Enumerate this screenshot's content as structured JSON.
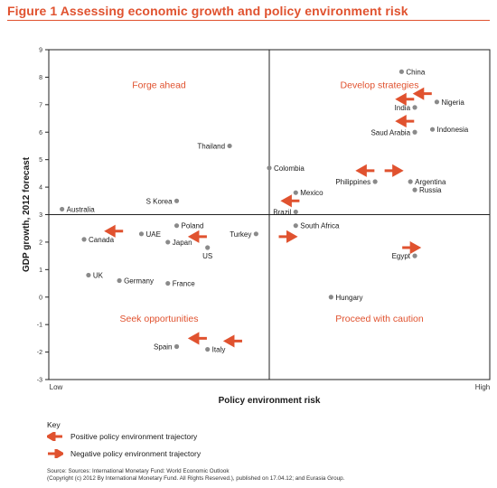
{
  "figure_title": "Figure 1  Assessing economic growth and policy environment risk",
  "colors": {
    "accent": "#e0522f",
    "point": "#8a8a8a",
    "frame": "#222222"
  },
  "chart_data": {
    "type": "scatter",
    "xlabel": "Policy environment risk",
    "ylabel": "GDP growth, 2012 forecast",
    "x_tick_labels": [
      "Low",
      "High"
    ],
    "x_scale": "qualitative index 0–100",
    "xlim": [
      0,
      100
    ],
    "ylim": [
      -3,
      9
    ],
    "yticks": [
      -3,
      -2,
      -1,
      0,
      1,
      2,
      3,
      4,
      5,
      6,
      7,
      8,
      9
    ],
    "grid": false,
    "quadrant_dividers": {
      "x": 50,
      "y": 3
    },
    "quadrant_labels": [
      "Forge ahead",
      "Develop strategies",
      "Seek opportunities",
      "Proceed with caution"
    ],
    "points": [
      {
        "label": "China",
        "x": 80,
        "y": 8.2
      },
      {
        "label": "Nigeria",
        "x": 88,
        "y": 7.1
      },
      {
        "label": "India",
        "x": 83,
        "y": 6.9
      },
      {
        "label": "Saud Arabia",
        "x": 83,
        "y": 6.0
      },
      {
        "label": "Indonesia",
        "x": 87,
        "y": 6.1
      },
      {
        "label": "Thailand",
        "x": 41,
        "y": 5.5
      },
      {
        "label": "Colombia",
        "x": 50,
        "y": 4.7
      },
      {
        "label": "Philippines",
        "x": 74,
        "y": 4.2
      },
      {
        "label": "Argentina",
        "x": 82,
        "y": 4.2
      },
      {
        "label": "Russia",
        "x": 83,
        "y": 3.9
      },
      {
        "label": "Mexico",
        "x": 56,
        "y": 3.8
      },
      {
        "label": "Brazil",
        "x": 56,
        "y": 3.1
      },
      {
        "label": "Australia",
        "x": 3,
        "y": 3.2
      },
      {
        "label": "S Korea",
        "x": 29,
        "y": 3.5
      },
      {
        "label": "South Africa",
        "x": 56,
        "y": 2.6
      },
      {
        "label": "Poland",
        "x": 29,
        "y": 2.6
      },
      {
        "label": "UAE",
        "x": 21,
        "y": 2.3
      },
      {
        "label": "Canada",
        "x": 8,
        "y": 2.1
      },
      {
        "label": "Japan",
        "x": 27,
        "y": 2.0
      },
      {
        "label": "Turkey",
        "x": 47,
        "y": 2.3
      },
      {
        "label": "US",
        "x": 36,
        "y": 1.8
      },
      {
        "label": "Egypt",
        "x": 83,
        "y": 1.5
      },
      {
        "label": "UK",
        "x": 9,
        "y": 0.8
      },
      {
        "label": "Germany",
        "x": 16,
        "y": 0.6
      },
      {
        "label": "France",
        "x": 27,
        "y": 0.5
      },
      {
        "label": "Hungary",
        "x": 64,
        "y": 0.0
      },
      {
        "label": "Spain",
        "x": 29,
        "y": -1.8
      },
      {
        "label": "Italy",
        "x": 36,
        "y": -1.9
      }
    ],
    "trajectory_arrows": [
      {
        "type": "positive",
        "x": 85,
        "y": 7.4
      },
      {
        "type": "positive",
        "x": 81,
        "y": 7.2
      },
      {
        "type": "positive",
        "x": 81,
        "y": 6.4
      },
      {
        "type": "positive",
        "x": 72,
        "y": 4.6
      },
      {
        "type": "negative",
        "x": 78,
        "y": 4.6
      },
      {
        "type": "positive",
        "x": 55,
        "y": 3.5
      },
      {
        "type": "positive",
        "x": 15,
        "y": 2.4
      },
      {
        "type": "positive",
        "x": 34,
        "y": 2.2
      },
      {
        "type": "negative",
        "x": 54,
        "y": 2.2
      },
      {
        "type": "negative",
        "x": 82,
        "y": 1.8
      },
      {
        "type": "positive",
        "x": 34,
        "y": -1.5
      },
      {
        "type": "positive",
        "x": 42,
        "y": -1.6
      }
    ]
  },
  "key": {
    "title": "Key",
    "positive": "Positive policy environment trajectory",
    "negative": "Negative policy environment trajectory"
  },
  "source": {
    "line1": "Source: Sources: International Monetary Fund: World Economic Outlook",
    "line2": "(Copyright (c) 2012 By International Monetary Fund. All Rights Reserved.), published on 17.04.12; and Eurasia Group."
  }
}
